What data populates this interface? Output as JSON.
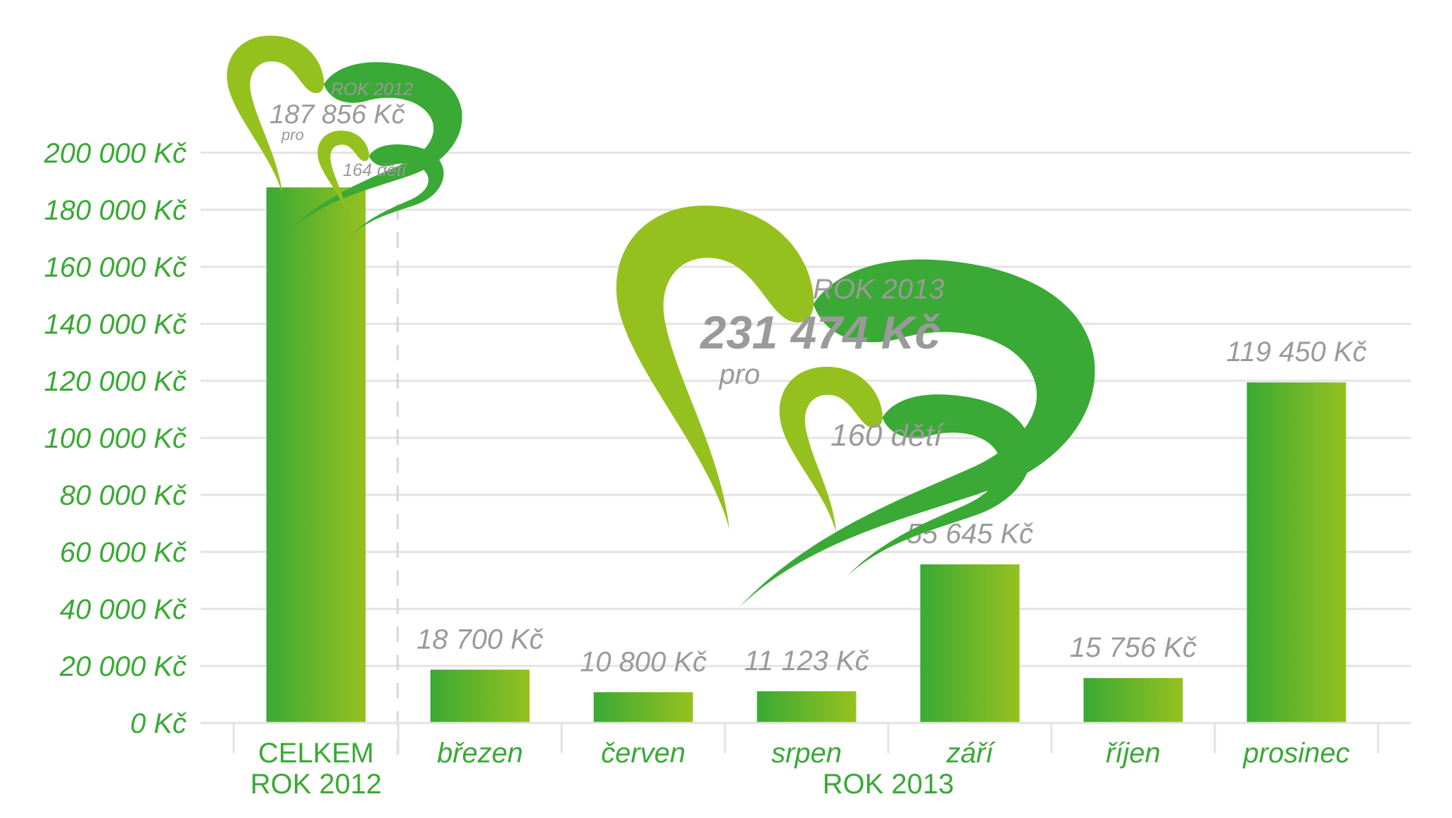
{
  "chart_data": {
    "type": "bar",
    "categories": [
      "CELKEM ROK 2012",
      "březen",
      "červen",
      "srpen",
      "září",
      "říjen",
      "prosinec"
    ],
    "category_lines": [
      [
        "CELKEM",
        "ROK 2012"
      ],
      [
        "březen"
      ],
      [
        "červen"
      ],
      [
        "srpen"
      ],
      [
        "září"
      ],
      [
        "říjen"
      ],
      [
        "prosinec"
      ]
    ],
    "values": [
      187856,
      18700,
      10800,
      11123,
      55645,
      15756,
      119450
    ],
    "value_labels": [
      "",
      "18 700 Kč",
      "10 800 Kč",
      "11 123 Kč",
      "55 645 Kč",
      "15 756 Kč",
      "119 450 Kč"
    ],
    "ylim": [
      0,
      200000
    ],
    "yticks": [
      0,
      20000,
      40000,
      60000,
      80000,
      100000,
      120000,
      140000,
      160000,
      180000,
      200000
    ],
    "ytick_labels": [
      "0 Kč",
      "20 000 Kč",
      "40 000 Kč",
      "60 000 Kč",
      "80 000 Kč",
      "100 000 Kč",
      "120 000 Kč",
      "140 000 Kč",
      "160 000 Kč",
      "180 000 Kč",
      "200 000 Kč"
    ],
    "group_label": "ROK 2013",
    "grid": true,
    "colors": {
      "bar_start": "#3aa935",
      "bar_end": "#95c11f",
      "tick_text": "#3aa935",
      "value_text": "#9a9a9a",
      "grid": "#e3e3e3"
    }
  },
  "badges": {
    "small": {
      "year": "ROK 2012",
      "amount": "187 856 Kč",
      "pro": "pro",
      "children": "164 dětí"
    },
    "large": {
      "year": "ROK 2013",
      "amount": "231 474 Kč",
      "pro": "pro",
      "children": "160 dětí"
    }
  }
}
